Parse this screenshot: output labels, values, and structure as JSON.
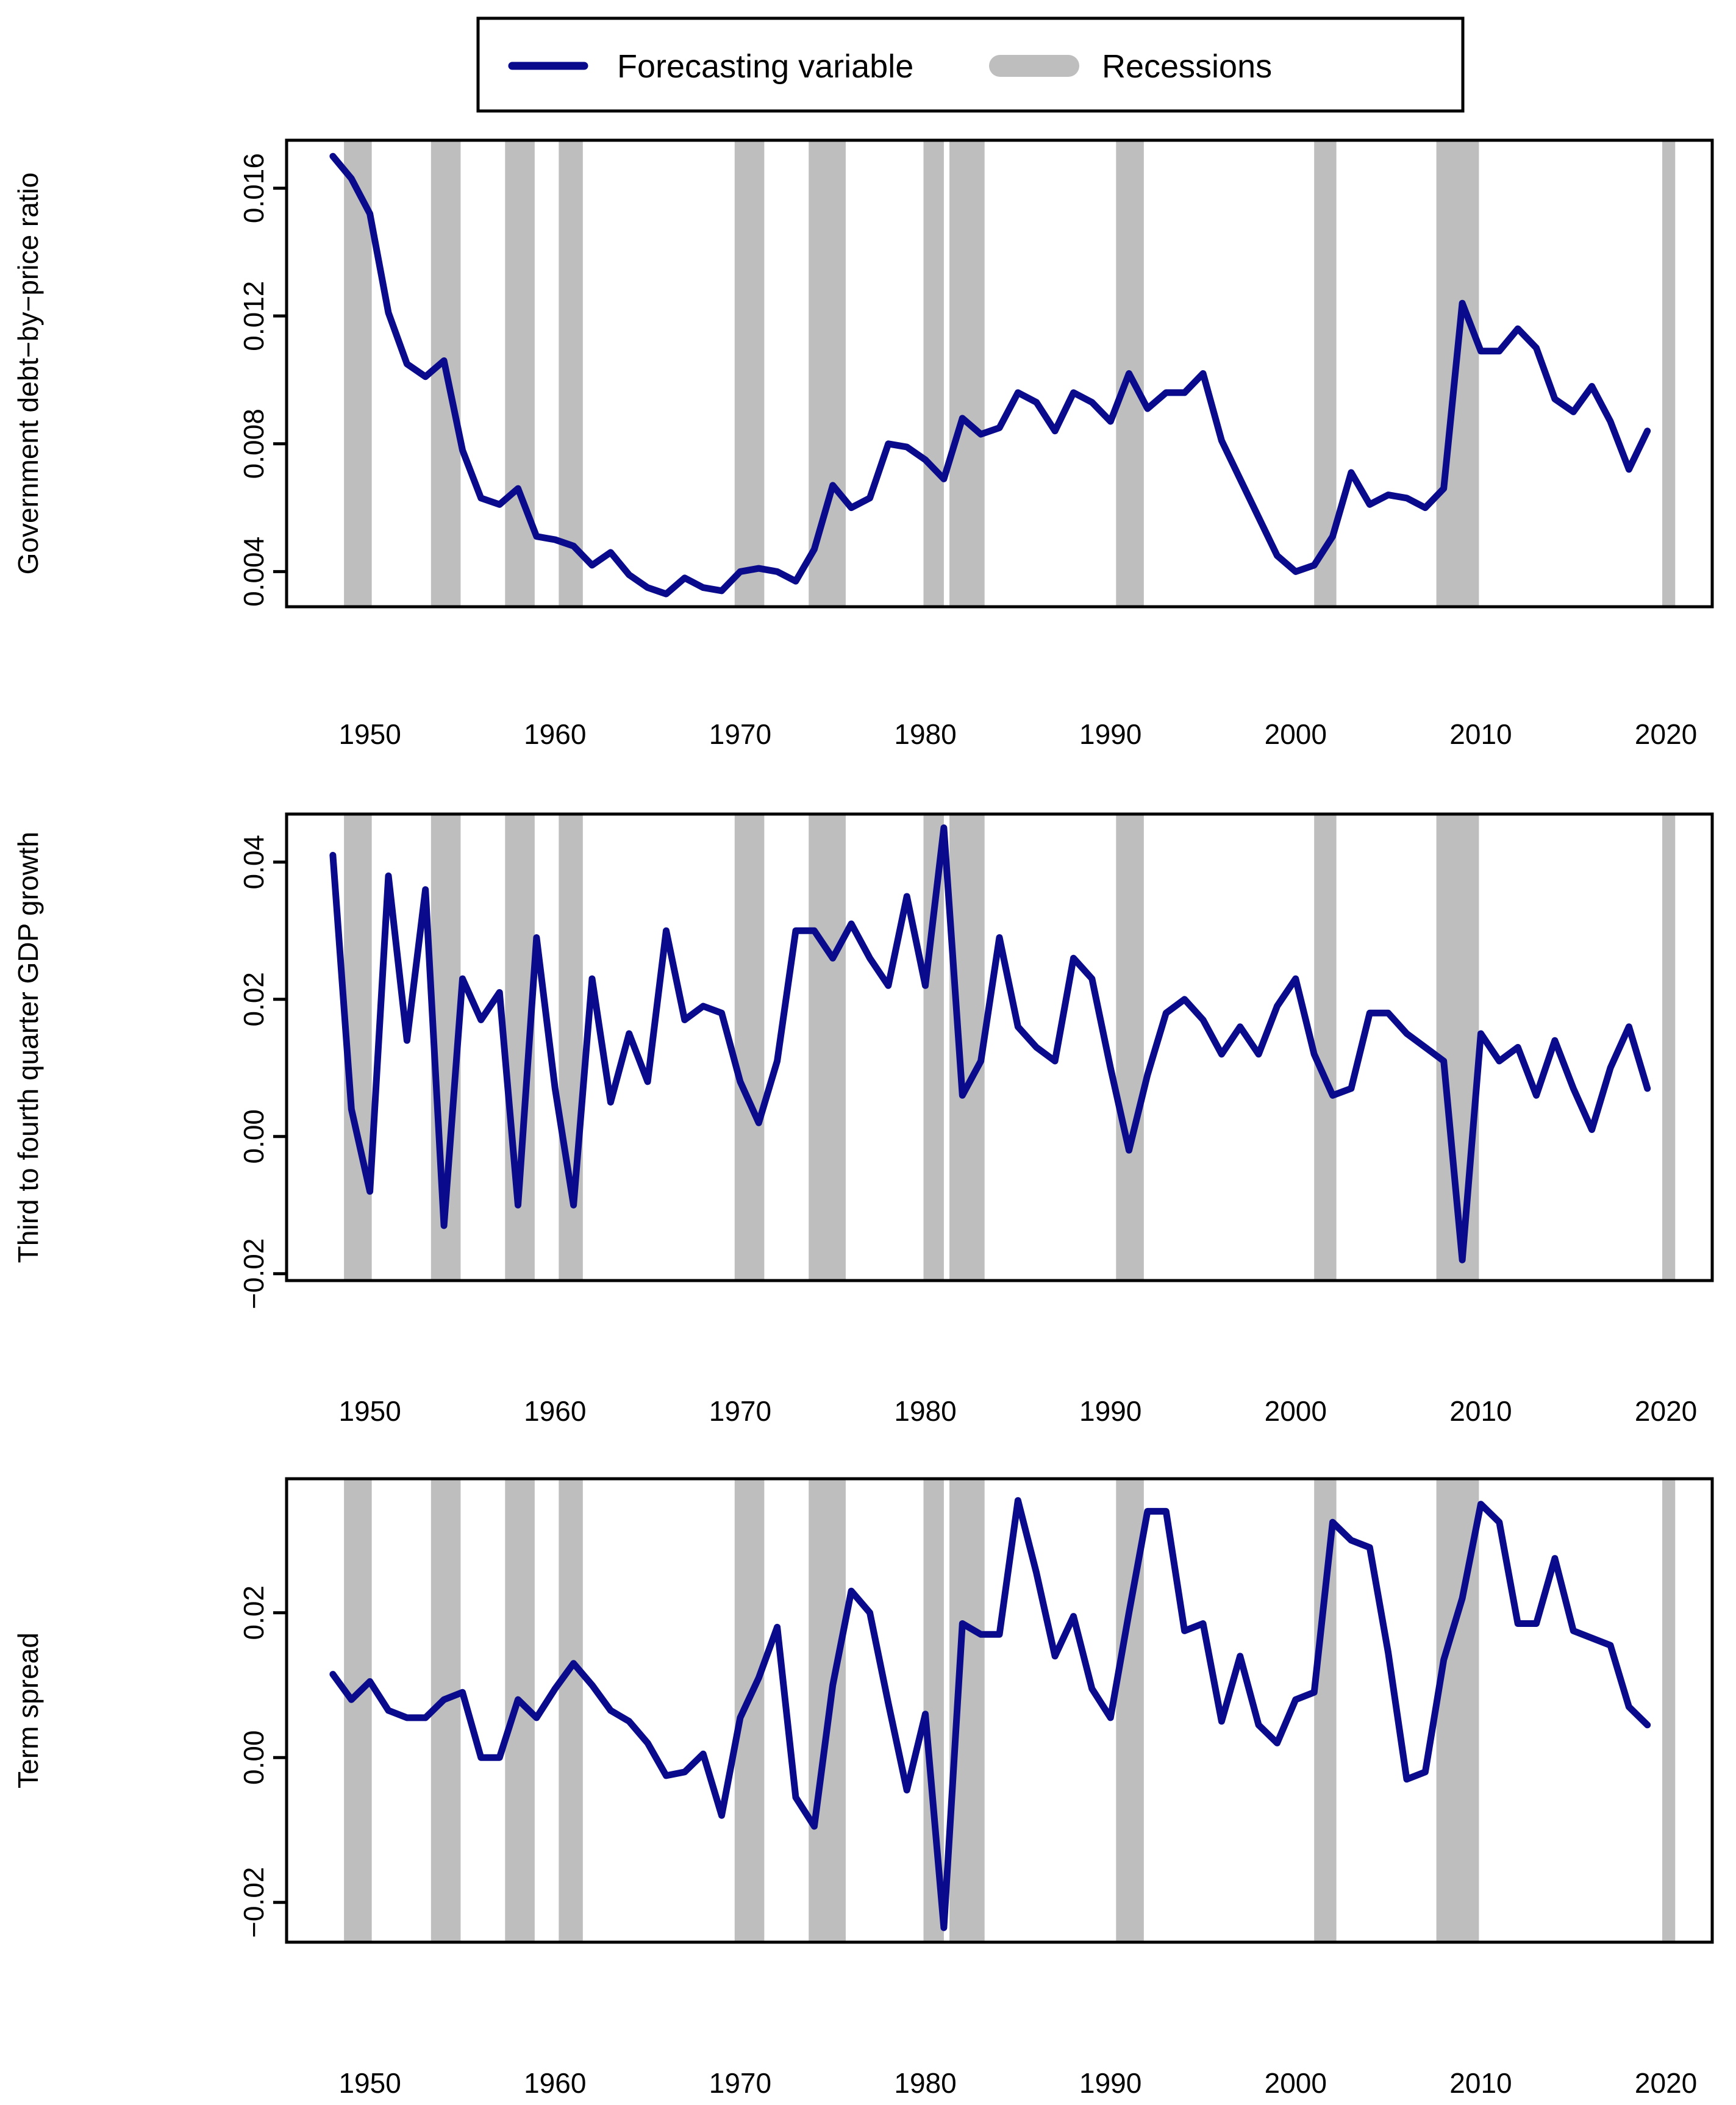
{
  "legend": {
    "line_label": "Forecasting variable",
    "recession_label": "Recessions",
    "placement": "top-center"
  },
  "colors": {
    "series": "#0a0a8c",
    "recession": "#bebebe",
    "axis": "#000000"
  },
  "recessions": [
    [
      1948.6,
      1950.1
    ],
    [
      1953.3,
      1954.9
    ],
    [
      1957.3,
      1958.9
    ],
    [
      1960.2,
      1961.5
    ],
    [
      1969.7,
      1971.3
    ],
    [
      1973.7,
      1975.7
    ],
    [
      1979.9,
      1981.0
    ],
    [
      1981.3,
      1983.2
    ],
    [
      1990.3,
      1991.8
    ],
    [
      2001.0,
      2002.2
    ],
    [
      2007.6,
      2009.9
    ],
    [
      2019.8,
      2020.5
    ]
  ],
  "chart_data": [
    {
      "type": "line",
      "ylabel": "Government debt−by−price ratio",
      "xlim": [
        1945.5,
        2022.5
      ],
      "ylim": [
        0.0029,
        0.0175
      ],
      "yticks": [
        0.004,
        0.008,
        0.012,
        0.016
      ],
      "ytick_labels": [
        "0.004",
        "0.008",
        "0.012",
        "0.016"
      ],
      "xticks": [
        1950,
        1960,
        1970,
        1980,
        1990,
        2000,
        2010,
        2020
      ],
      "xtick_labels": [
        "1950",
        "1960",
        "1970",
        "1980",
        "1990",
        "2000",
        "2010",
        "2020"
      ],
      "x": [
        1948,
        1949,
        1950,
        1951,
        1952,
        1953,
        1954,
        1955,
        1956,
        1957,
        1958,
        1959,
        1960,
        1961,
        1962,
        1963,
        1964,
        1965,
        1966,
        1967,
        1968,
        1969,
        1970,
        1971,
        1972,
        1973,
        1974,
        1975,
        1976,
        1977,
        1978,
        1979,
        1980,
        1981,
        1982,
        1983,
        1984,
        1985,
        1986,
        1987,
        1988,
        1989,
        1990,
        1991,
        1992,
        1993,
        1994,
        1995,
        1996,
        1997,
        1998,
        1999,
        2000,
        2001,
        2002,
        2003,
        2004,
        2005,
        2006,
        2007,
        2008,
        2009,
        2010,
        2011,
        2012,
        2013,
        2014,
        2015,
        2016,
        2017,
        2018,
        2019
      ],
      "values": [
        0.017,
        0.0163,
        0.0152,
        0.0121,
        0.0105,
        0.0101,
        0.0106,
        0.0078,
        0.0063,
        0.0061,
        0.0066,
        0.0051,
        0.005,
        0.0048,
        0.0042,
        0.0046,
        0.0039,
        0.0035,
        0.0033,
        0.0038,
        0.0035,
        0.0034,
        0.004,
        0.0041,
        0.004,
        0.0037,
        0.0047,
        0.0067,
        0.006,
        0.0063,
        0.008,
        0.0079,
        0.0075,
        0.0069,
        0.0088,
        0.0083,
        0.0085,
        0.0096,
        0.0093,
        0.0084,
        0.0096,
        0.0093,
        0.0087,
        0.0102,
        0.0091,
        0.0096,
        0.0096,
        0.0102,
        0.0081,
        0.0069,
        0.0057,
        0.0045,
        0.004,
        0.0042,
        0.0051,
        0.0071,
        0.0061,
        0.0064,
        0.0063,
        0.006,
        0.0066,
        0.0124,
        0.0109,
        0.0109,
        0.0116,
        0.011,
        0.0094,
        0.009,
        0.0098,
        0.0087,
        0.0072,
        0.0084
      ]
    },
    {
      "type": "line",
      "ylabel": "Third to fourth quarter GDP growth",
      "xlim": [
        1945.5,
        2022.5
      ],
      "ylim": [
        -0.021,
        0.047
      ],
      "yticks": [
        -0.02,
        0.0,
        0.02,
        0.04
      ],
      "ytick_labels": [
        "−0.02",
        "0.00",
        "0.02",
        "0.04"
      ],
      "xticks": [
        1950,
        1960,
        1970,
        1980,
        1990,
        2000,
        2010,
        2020
      ],
      "xtick_labels": [
        "1950",
        "1960",
        "1970",
        "1980",
        "1990",
        "2000",
        "2010",
        "2020"
      ],
      "x": [
        1948,
        1949,
        1950,
        1951,
        1952,
        1953,
        1954,
        1955,
        1956,
        1957,
        1958,
        1959,
        1960,
        1961,
        1962,
        1963,
        1964,
        1965,
        1966,
        1967,
        1968,
        1969,
        1970,
        1971,
        1972,
        1973,
        1974,
        1975,
        1976,
        1977,
        1978,
        1979,
        1980,
        1981,
        1982,
        1983,
        1984,
        1985,
        1986,
        1987,
        1988,
        1989,
        1990,
        1991,
        1992,
        1993,
        1994,
        1995,
        1996,
        1997,
        1998,
        1999,
        2000,
        2001,
        2002,
        2003,
        2004,
        2005,
        2006,
        2007,
        2008,
        2009,
        2010,
        2011,
        2012,
        2013,
        2014,
        2015,
        2016,
        2017,
        2018,
        2019
      ],
      "values": [
        0.041,
        0.004,
        -0.008,
        0.038,
        0.014,
        0.036,
        -0.013,
        0.023,
        0.017,
        0.021,
        -0.01,
        0.029,
        0.007,
        -0.01,
        0.023,
        0.005,
        0.015,
        0.008,
        0.03,
        0.017,
        0.019,
        0.018,
        0.008,
        0.002,
        0.011,
        0.03,
        0.03,
        0.026,
        0.031,
        0.026,
        0.022,
        0.035,
        0.022,
        0.045,
        0.006,
        0.011,
        0.029,
        0.016,
        0.013,
        0.011,
        0.026,
        0.023,
        0.01,
        -0.002,
        0.009,
        0.018,
        0.02,
        0.017,
        0.012,
        0.016,
        0.012,
        0.019,
        0.023,
        0.012,
        0.006,
        0.007,
        0.018,
        0.018,
        0.015,
        0.013,
        0.011,
        -0.018,
        0.015,
        0.011,
        0.013,
        0.006,
        0.014,
        0.007,
        0.001,
        0.01,
        0.016,
        0.007
      ]
    },
    {
      "type": "line",
      "ylabel": "Term spread",
      "xlim": [
        1945.5,
        2022.5
      ],
      "ylim": [
        -0.0255,
        0.0385
      ],
      "yticks": [
        -0.02,
        0.0,
        0.02
      ],
      "ytick_labels": [
        "−0.02",
        "0.00",
        "0.02"
      ],
      "xticks": [
        1950,
        1960,
        1970,
        1980,
        1990,
        2000,
        2010,
        2020
      ],
      "xtick_labels": [
        "1950",
        "1960",
        "1970",
        "1980",
        "1990",
        "2000",
        "2010",
        "2020"
      ],
      "x": [
        1948,
        1949,
        1950,
        1951,
        1952,
        1953,
        1954,
        1955,
        1956,
        1957,
        1958,
        1959,
        1960,
        1961,
        1962,
        1963,
        1964,
        1965,
        1966,
        1967,
        1968,
        1969,
        1970,
        1971,
        1972,
        1973,
        1974,
        1975,
        1976,
        1977,
        1978,
        1979,
        1980,
        1981,
        1982,
        1983,
        1984,
        1985,
        1986,
        1987,
        1988,
        1989,
        1990,
        1991,
        1992,
        1993,
        1994,
        1995,
        1996,
        1997,
        1998,
        1999,
        2000,
        2001,
        2002,
        2003,
        2004,
        2005,
        2006,
        2007,
        2008,
        2009,
        2010,
        2011,
        2012,
        2013,
        2014,
        2015,
        2016,
        2017,
        2018,
        2019
      ],
      "values": [
        0.0115,
        0.008,
        0.0105,
        0.0065,
        0.0055,
        0.0055,
        0.008,
        0.009,
        0.0,
        0.0,
        0.008,
        0.0055,
        0.0095,
        0.013,
        0.01,
        0.0065,
        0.005,
        0.002,
        -0.0025,
        -0.002,
        0.0005,
        -0.008,
        0.0055,
        0.011,
        0.018,
        -0.0055,
        -0.0095,
        0.01,
        0.023,
        0.02,
        0.0075,
        -0.0045,
        0.006,
        -0.0235,
        0.0185,
        0.017,
        0.017,
        0.0355,
        0.0255,
        0.014,
        0.0195,
        0.0095,
        0.0055,
        0.02,
        0.034,
        0.034,
        0.0175,
        0.0185,
        0.005,
        0.014,
        0.0045,
        0.002,
        0.008,
        0.009,
        0.0325,
        0.03,
        0.029,
        0.0145,
        -0.003,
        -0.002,
        0.0135,
        0.022,
        0.035,
        0.0325,
        0.0185,
        0.0185,
        0.0275,
        0.0175,
        0.0165,
        0.0155,
        0.007,
        0.0045
      ]
    }
  ]
}
